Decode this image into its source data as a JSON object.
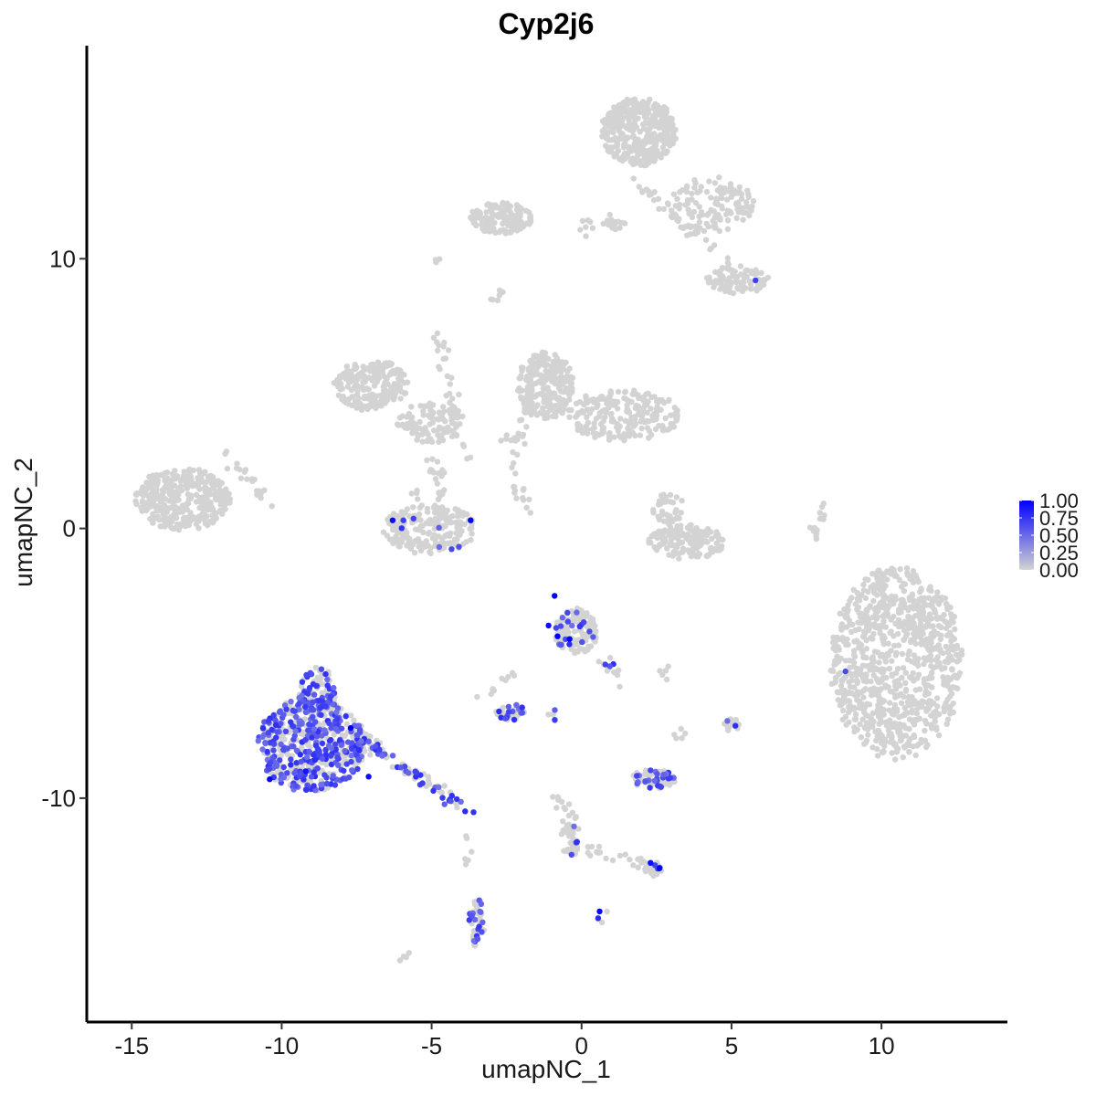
{
  "chart_data": {
    "type": "scatter",
    "title": "Cyp2j6",
    "xlabel": "umapNC_1",
    "ylabel": "umapNC_2",
    "xlim": [
      -16.5,
      14.2
    ],
    "ylim": [
      -18.3,
      17.9
    ],
    "x_ticks": [
      -15,
      -10,
      -5,
      0,
      5,
      10
    ],
    "x_tick_labels": [
      "-15",
      "-10",
      "-5",
      "0",
      "5",
      "10"
    ],
    "y_ticks": [
      -10,
      0,
      10
    ],
    "y_tick_labels": [
      "-10",
      "0",
      "10"
    ],
    "grid": false,
    "color_scale": {
      "low": "#d3d3d3",
      "high": "#0000ff",
      "min": 0,
      "max": 1,
      "ticks": [
        1.0,
        0.75,
        0.5,
        0.25,
        0.0
      ],
      "tick_labels": [
        "1.00",
        "0.75",
        "0.50",
        "0.25",
        "0.00"
      ],
      "legend_position": "right"
    },
    "clusters": [
      {
        "cx": 10.5,
        "cy": -5.0,
        "rx": 2.1,
        "ry": 3.4,
        "n": 900,
        "expressed_frac": 0.002
      },
      {
        "cx": -13.3,
        "cy": 1.1,
        "rx": 1.5,
        "ry": 1.1,
        "n": 380,
        "expressed_frac": 0.0
      },
      {
        "cx": 1.9,
        "cy": 14.7,
        "rx": 1.2,
        "ry": 1.2,
        "n": 420,
        "expressed_frac": 0.0
      },
      {
        "cx": -2.7,
        "cy": 11.5,
        "rx": 1.0,
        "ry": 0.55,
        "n": 150,
        "expressed_frac": 0.0
      },
      {
        "cx": 4.3,
        "cy": 12.0,
        "rx": 1.4,
        "ry": 1.0,
        "n": 120,
        "expressed_frac": 0.0
      },
      {
        "cx": 5.2,
        "cy": 9.2,
        "rx": 1.0,
        "ry": 0.5,
        "n": 90,
        "expressed_frac": 0.02
      },
      {
        "cx": -7.0,
        "cy": 5.3,
        "rx": 1.2,
        "ry": 0.9,
        "n": 200,
        "expressed_frac": 0.0
      },
      {
        "cx": -5.1,
        "cy": 3.9,
        "rx": 1.0,
        "ry": 0.7,
        "n": 100,
        "expressed_frac": 0.0
      },
      {
        "cx": -1.2,
        "cy": 5.3,
        "rx": 0.9,
        "ry": 1.2,
        "n": 250,
        "expressed_frac": 0.0
      },
      {
        "cx": 1.4,
        "cy": 4.2,
        "rx": 1.8,
        "ry": 0.9,
        "n": 220,
        "expressed_frac": 0.0
      },
      {
        "cx": -5.1,
        "cy": 0.0,
        "rx": 1.5,
        "ry": 0.9,
        "n": 220,
        "expressed_frac": 0.03
      },
      {
        "cx": 3.5,
        "cy": -0.5,
        "rx": 1.2,
        "ry": 0.6,
        "n": 160,
        "expressed_frac": 0.0
      },
      {
        "cx": 2.9,
        "cy": 0.7,
        "rx": 0.5,
        "ry": 0.6,
        "n": 40,
        "expressed_frac": 0.0
      },
      {
        "cx": -9.0,
        "cy": -8.0,
        "rx": 1.7,
        "ry": 1.7,
        "n": 560,
        "expressed_frac": 0.5
      },
      {
        "cx": -8.8,
        "cy": -6.1,
        "rx": 0.6,
        "ry": 0.9,
        "n": 90,
        "expressed_frac": 0.45
      },
      {
        "cx": -0.2,
        "cy": -3.8,
        "rx": 0.7,
        "ry": 0.8,
        "n": 140,
        "expressed_frac": 0.15
      },
      {
        "cx": -2.4,
        "cy": -6.8,
        "rx": 0.5,
        "ry": 0.3,
        "n": 40,
        "expressed_frac": 0.3
      },
      {
        "cx": 2.4,
        "cy": -9.3,
        "rx": 0.7,
        "ry": 0.35,
        "n": 80,
        "expressed_frac": 0.35
      },
      {
        "cx": -3.5,
        "cy": -14.6,
        "rx": 0.25,
        "ry": 0.9,
        "n": 50,
        "expressed_frac": 0.3
      },
      {
        "cx": -0.3,
        "cy": -11.3,
        "rx": 0.2,
        "ry": 0.8,
        "n": 30,
        "expressed_frac": 0.15
      },
      {
        "cx": 5.0,
        "cy": -7.3,
        "rx": 0.25,
        "ry": 0.25,
        "n": 15,
        "expressed_frac": 0.3
      },
      {
        "cx": 2.4,
        "cy": -12.6,
        "rx": 0.3,
        "ry": 0.3,
        "n": 20,
        "expressed_frac": 0.2
      }
    ],
    "strands": [
      {
        "x1": -10.4,
        "y1": 0.6,
        "x2": -11.8,
        "y2": 2.8,
        "n": 22
      },
      {
        "x1": -7.7,
        "y1": -7.5,
        "x2": -3.8,
        "y2": -10.5,
        "n": 90,
        "expressed_frac": 0.4
      },
      {
        "x1": -4.8,
        "y1": 7.6,
        "x2": -3.9,
        "y2": 2.2,
        "n": 40
      },
      {
        "x1": -5.0,
        "y1": 2.6,
        "x2": -4.6,
        "y2": 1.0,
        "n": 20
      },
      {
        "x1": -1.8,
        "y1": 4.5,
        "x2": -2.4,
        "y2": 2.2,
        "n": 20
      },
      {
        "x1": -2.3,
        "y1": 1.6,
        "x2": -1.6,
        "y2": 0.6,
        "n": 12
      },
      {
        "x1": 0.0,
        "y1": 11.2,
        "x2": 1.5,
        "y2": 11.3,
        "n": 22
      },
      {
        "x1": 1.8,
        "y1": 12.8,
        "x2": 5.5,
        "y2": 9.3,
        "n": 40
      },
      {
        "x1": 5.0,
        "y1": 11.8,
        "x2": 5.6,
        "y2": 12.0,
        "n": 12
      },
      {
        "x1": -2.6,
        "y1": 8.8,
        "x2": -2.9,
        "y2": 8.5,
        "n": 6
      },
      {
        "x1": 7.7,
        "y1": -0.3,
        "x2": 8.1,
        "y2": 0.9,
        "n": 15
      },
      {
        "x1": -3.2,
        "y1": -6.3,
        "x2": -2.2,
        "y2": -5.3,
        "n": 10
      },
      {
        "x1": 0.7,
        "y1": -4.8,
        "x2": 1.2,
        "y2": -5.6,
        "n": 12,
        "expressed_frac": 0.3
      },
      {
        "x1": -0.9,
        "y1": -9.6,
        "x2": -0.3,
        "y2": -12.0,
        "n": 20
      },
      {
        "x1": -0.2,
        "y1": -11.8,
        "x2": 1.6,
        "y2": -12.2,
        "n": 15
      },
      {
        "x1": 1.7,
        "y1": -12.3,
        "x2": 2.5,
        "y2": -12.7,
        "n": 12
      },
      {
        "x1": -3.9,
        "y1": -11.2,
        "x2": -3.8,
        "y2": -12.4,
        "n": 6
      },
      {
        "x1": 3.3,
        "y1": -7.9,
        "x2": 3.2,
        "y2": -7.5,
        "n": 5
      },
      {
        "x1": 2.5,
        "y1": -5.5,
        "x2": 3.0,
        "y2": -5.3,
        "n": 5
      },
      {
        "x1": -6.0,
        "y1": -16.1,
        "x2": -5.8,
        "y2": -15.9,
        "n": 5
      },
      {
        "x1": -2.7,
        "y1": 3.6,
        "x2": -2.6,
        "y2": 3.2,
        "n": 4
      },
      {
        "x1": -5.6,
        "y1": 1.2,
        "x2": -5.2,
        "y2": 1.6,
        "n": 4
      },
      {
        "x1": -4.9,
        "y1": 10.1,
        "x2": -4.7,
        "y2": 10.0,
        "n": 3
      },
      {
        "x1": 0.4,
        "y1": -14.5,
        "x2": 0.7,
        "y2": -14.3,
        "n": 4,
        "expressed_frac": 0.5
      },
      {
        "x1": -1.0,
        "y1": -6.8,
        "x2": -0.7,
        "y2": -7.2,
        "n": 5,
        "expressed_frac": 0.4
      }
    ],
    "high_expression_points": [
      {
        "x": -0.9,
        "y": -2.5,
        "v": 1.0
      },
      {
        "x": -0.8,
        "y": -4.0,
        "v": 1.0
      },
      {
        "x": -0.4,
        "y": -4.1,
        "v": 1.0
      },
      {
        "x": -1.1,
        "y": -3.6,
        "v": 0.95
      },
      {
        "x": -6.3,
        "y": 0.3,
        "v": 0.95
      },
      {
        "x": -3.7,
        "y": 0.3,
        "v": 1.0
      },
      {
        "x": -10.4,
        "y": -9.3,
        "v": 1.0
      },
      {
        "x": -7.7,
        "y": -7.4,
        "v": 1.0
      },
      {
        "x": -7.1,
        "y": -9.2,
        "v": 0.95
      },
      {
        "x": -9.2,
        "y": -9.0,
        "v": 0.9
      },
      {
        "x": 0.6,
        "y": -14.2,
        "v": 1.0
      },
      {
        "x": 2.6,
        "y": -12.6,
        "v": 1.0
      },
      {
        "x": 2.3,
        "y": -12.4,
        "v": 0.95
      },
      {
        "x": 5.8,
        "y": 9.2,
        "v": 0.7
      },
      {
        "x": 8.8,
        "y": -5.3,
        "v": 0.65
      }
    ]
  }
}
